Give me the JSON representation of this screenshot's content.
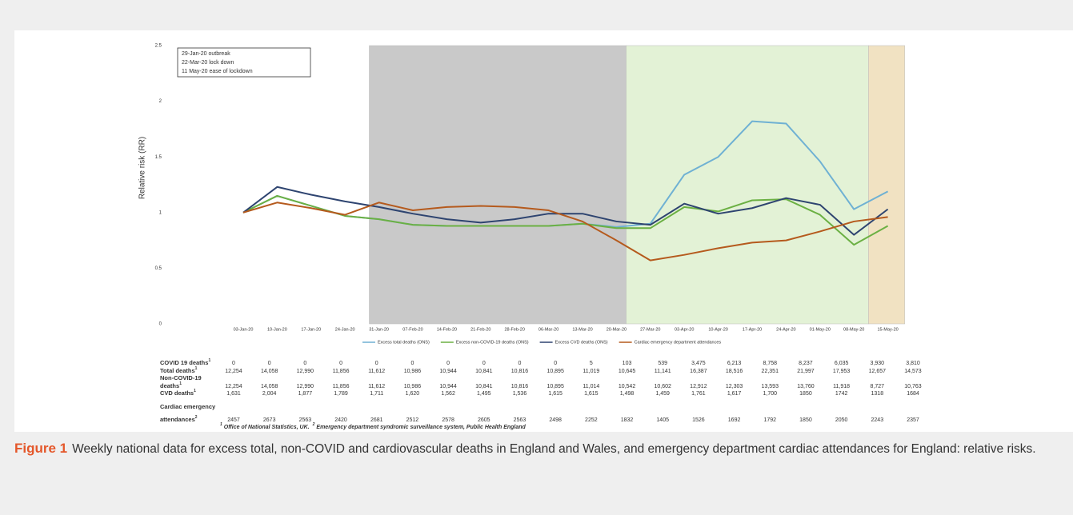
{
  "chart_data": {
    "type": "line",
    "y_label": "Relative risk (RR)",
    "categories": [
      "03-Jan-20",
      "10-Jan-20",
      "17-Jan-20",
      "24-Jan-20",
      "31-Jan-20",
      "07-Feb-20",
      "14-Feb-20",
      "21-Feb-20",
      "28-Feb-20",
      "06-Mar-20",
      "13-Mar-20",
      "20-Mar-20",
      "27-Mar-20",
      "03-Apr-20",
      "10-Apr-20",
      "17-Apr-20",
      "24-Apr-20",
      "01-May-20",
      "08-May-20",
      "15-May-20"
    ],
    "series": [
      {
        "name": "Excess total deaths (ONS)",
        "color": "#6fb1d3",
        "values": [
          1.0,
          1.15,
          1.06,
          0.97,
          0.94,
          0.89,
          0.88,
          0.88,
          0.88,
          0.88,
          0.9,
          0.87,
          0.9,
          1.34,
          1.5,
          1.82,
          1.8,
          1.46,
          1.03,
          1.19
        ]
      },
      {
        "name": "Excess non-COVID-19 deaths (ONS)",
        "color": "#6bb043",
        "values": [
          1.0,
          1.15,
          1.06,
          0.97,
          0.94,
          0.89,
          0.88,
          0.88,
          0.88,
          0.88,
          0.9,
          0.86,
          0.86,
          1.05,
          1.01,
          1.11,
          1.12,
          0.98,
          0.71,
          0.88
        ]
      },
      {
        "name": "Excess CVD deaths (ONS)",
        "color": "#2e4470",
        "values": [
          1.0,
          1.23,
          1.16,
          1.1,
          1.05,
          0.99,
          0.94,
          0.91,
          0.94,
          0.99,
          0.99,
          0.92,
          0.89,
          1.08,
          0.99,
          1.04,
          1.13,
          1.07,
          0.8,
          1.03
        ]
      },
      {
        "name": "Cardiac emergency department attendances",
        "color": "#b55a1d",
        "values": [
          1.0,
          1.09,
          1.04,
          0.98,
          1.09,
          1.02,
          1.05,
          1.06,
          1.05,
          1.02,
          0.92,
          0.75,
          0.57,
          0.62,
          0.68,
          0.73,
          0.75,
          0.83,
          0.92,
          0.96
        ]
      }
    ],
    "ylim": [
      0,
      2.5
    ],
    "yticks": [
      0,
      0.5,
      1,
      1.5,
      2,
      2.5
    ],
    "grid": false,
    "periods": [
      {
        "label": "29-Jan-20 outbreak",
        "color": "#000000",
        "fill": "#c9c9c9"
      },
      {
        "label": "22-Mar-20 lock down",
        "color": "#7cc143",
        "fill": "#e3f2d6"
      },
      {
        "label": "11 May-20 ease of lockdown",
        "color": "#c7871e",
        "fill": "#f1e2c2"
      }
    ]
  },
  "table": {
    "rows": [
      {
        "label_lines": [
          "COVID 19 deaths"
        ],
        "sup": "1",
        "values": [
          "0",
          "0",
          "0",
          "0",
          "0",
          "0",
          "0",
          "0",
          "0",
          "0",
          "5",
          "103",
          "539",
          "3,475",
          "6,213",
          "8,758",
          "8,237",
          "6,035",
          "3,930",
          "3,810"
        ]
      },
      {
        "label_lines": [
          "Total deaths"
        ],
        "sup": "1",
        "values": [
          "12,254",
          "14,058",
          "12,990",
          "11,856",
          "11,612",
          "10,986",
          "10,944",
          "10,841",
          "10,816",
          "10,895",
          "11,019",
          "10,645",
          "11,141",
          "16,387",
          "18,516",
          "22,351",
          "21,997",
          "17,953",
          "12,657",
          "14,573"
        ]
      },
      {
        "label_lines": [
          "Non-COVID-19",
          "deaths"
        ],
        "sup": "1",
        "values": [
          "12,254",
          "14,058",
          "12,990",
          "11,856",
          "11,612",
          "10,986",
          "10,944",
          "10,841",
          "10,816",
          "10,895",
          "11,014",
          "10,542",
          "10,602",
          "12,912",
          "12,303",
          "13,593",
          "13,760",
          "11,918",
          "8,727",
          "10,763"
        ]
      },
      {
        "label_lines": [
          "CVD deaths"
        ],
        "sup": "1",
        "values": [
          "1,631",
          "2,004",
          "1,877",
          "1,789",
          "1,711",
          "1,620",
          "1,562",
          "1,495",
          "1,536",
          "1,615",
          "1,615",
          "1,498",
          "1,459",
          "1,761",
          "1,617",
          "1,700",
          "1850",
          "1742",
          "1318",
          "1684"
        ]
      },
      {
        "label_lines": [
          "Cardiac emergency",
          "attendances"
        ],
        "sup": "2",
        "values": [
          "2457",
          "2673",
          "2563",
          "2420",
          "2681",
          "2512",
          "2578",
          "2605",
          "2563",
          "2498",
          "2252",
          "1832",
          "1405",
          "1526",
          "1692",
          "1792",
          "1850",
          "2050",
          "2243",
          "2357"
        ]
      }
    ]
  },
  "footnotes": [
    {
      "sup": "1",
      "text": "Office of National Statistics, UK."
    },
    {
      "sup": "2",
      "text": "Emergency department syndromic surveillance system, Public Health England"
    }
  ],
  "caption": {
    "label": "Figure 1",
    "text": "Weekly national data for excess total, non-COVID and cardiovascular deaths in England and Wales, and emergency department cardiac attendances for England: relative risks."
  }
}
